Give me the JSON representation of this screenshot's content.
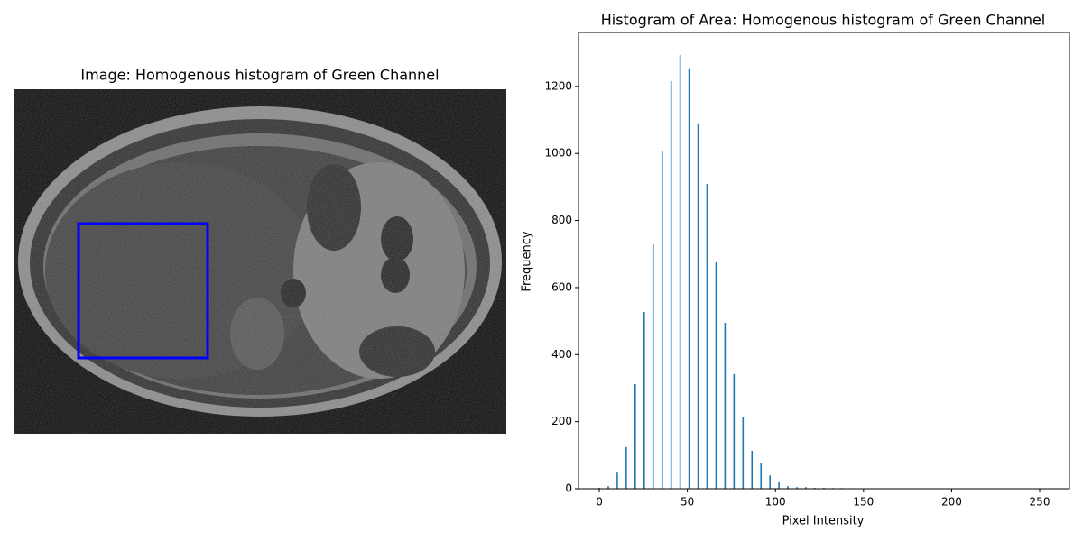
{
  "chart_data": [
    {
      "type": "image",
      "title": "Image: Homogenous histogram of Green Channel"
    },
    {
      "type": "bar",
      "title": "Histogram of Area: Homogenous histogram of Green Channel",
      "x_label": "Pixel Intensity",
      "y_label": "Frequency",
      "color": "#1f77b4",
      "x": [
        0,
        5.1,
        10.2,
        15.3,
        20.4,
        25.5,
        30.6,
        35.7,
        40.8,
        45.9,
        51,
        56.1,
        61.2,
        66.3,
        71.4,
        76.5,
        81.6,
        86.7,
        91.8,
        96.9,
        102,
        107.1,
        112.2,
        117.3,
        122.4,
        127.5,
        132.6,
        137.7
      ],
      "values": [
        3,
        8,
        48,
        124,
        312,
        527,
        729,
        1009,
        1216,
        1294,
        1254,
        1090,
        909,
        675,
        495,
        342,
        213,
        113,
        78,
        40,
        19,
        8,
        5,
        5,
        3,
        3,
        2,
        2
      ],
      "xlim": [
        -11.8,
        266.9
      ],
      "xticks": [
        0,
        50,
        100,
        150,
        200,
        250
      ],
      "ylim": [
        0,
        1361
      ],
      "yticks": [
        0,
        200,
        400,
        600,
        800,
        1000,
        1200
      ]
    }
  ]
}
